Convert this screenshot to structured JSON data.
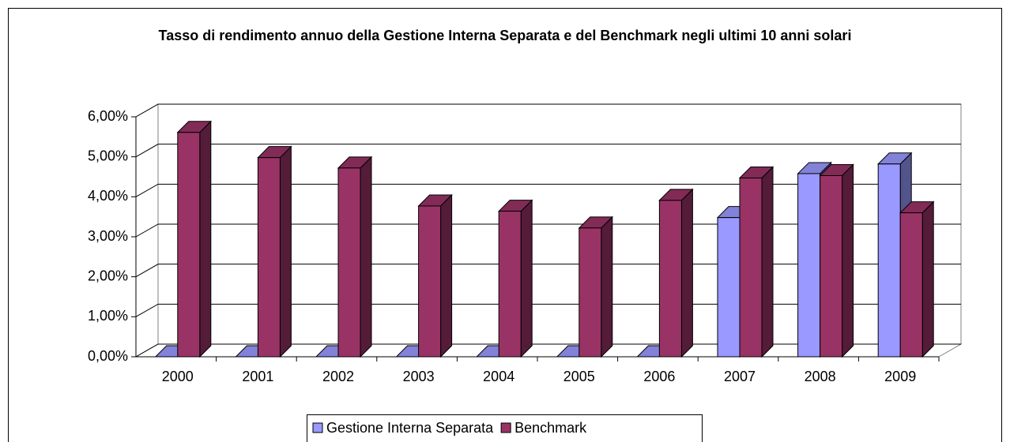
{
  "chart_data": {
    "type": "bar3d",
    "title": "Tasso di rendimento annuo della Gestione Interna Separata e del Benchmark negli ultimi 10 anni solari",
    "categories": [
      "2000",
      "2001",
      "2002",
      "2003",
      "2004",
      "2005",
      "2006",
      "2007",
      "2008",
      "2009"
    ],
    "series": [
      {
        "name": "Gestione Interna Separata",
        "color": "#9999ff",
        "values": [
          0,
          0,
          0,
          0,
          0,
          0,
          0,
          3.48,
          4.58,
          4.82
        ]
      },
      {
        "name": "Benchmark",
        "color": "#993366",
        "values": [
          5.61,
          4.98,
          4.72,
          3.77,
          3.64,
          3.22,
          3.91,
          4.47,
          4.53,
          3.6
        ]
      }
    ],
    "ylim": [
      0,
      6
    ],
    "yticks": [
      {
        "value": 0,
        "label": "0,00%"
      },
      {
        "value": 1,
        "label": "1,00%"
      },
      {
        "value": 2,
        "label": "2,00%"
      },
      {
        "value": 3,
        "label": "3,00%"
      },
      {
        "value": 4,
        "label": "4,00%"
      },
      {
        "value": 5,
        "label": "5,00%"
      },
      {
        "value": 6,
        "label": "6,00%"
      }
    ],
    "grid": true,
    "legend": "bottom"
  }
}
